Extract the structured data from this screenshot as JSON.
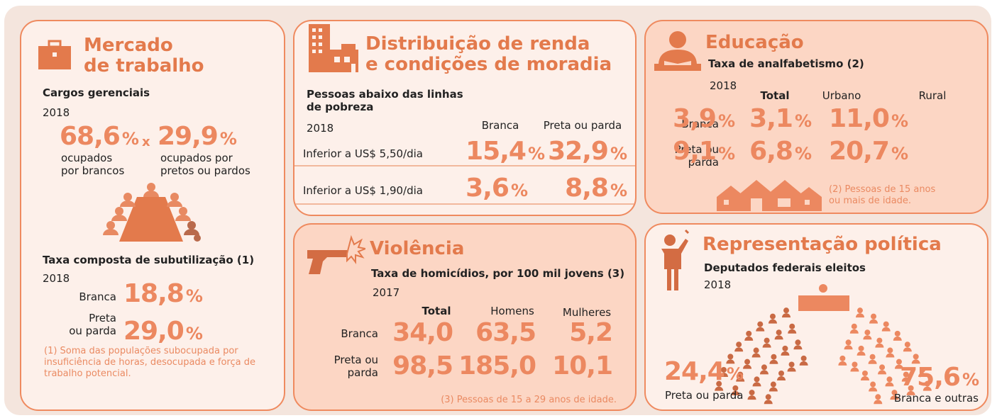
{
  "mercado": {
    "title": "Mercado\nde trabalho",
    "subtitle": "Cargos gerenciais",
    "year": "2018",
    "stats": [
      {
        "value": "68,6",
        "unit": "%",
        "label": "ocupados\npor brancos"
      },
      {
        "value": "29,9",
        "unit": "%",
        "label": "ocupados por\npretos ou pardos"
      }
    ],
    "sep": "x",
    "subtitle2": "Taxa composta de subutilização (1)",
    "year2": "2018",
    "rows": [
      {
        "label": "Branca",
        "value": "18,8",
        "unit": "%"
      },
      {
        "label": "Preta\nou parda",
        "value": "29,0",
        "unit": "%"
      }
    ],
    "note": "(1) Soma das populações subocupada por insuficiência de horas, desocupada e força de trabalho potencial."
  },
  "renda": {
    "title": "Distribuição de renda\ne condições de moradia",
    "subtitle": "Pessoas abaixo das linhas\nde pobreza",
    "year": "2018",
    "columns": [
      "Branca",
      "Preta ou parda"
    ],
    "rows": [
      {
        "label": "Inferior a US$ 5,50/dia",
        "values": [
          {
            "value": "15,4",
            "unit": "%"
          },
          {
            "value": "32,9",
            "unit": "%"
          }
        ]
      },
      {
        "label": "Inferior a US$ 1,90/dia",
        "values": [
          {
            "value": "3,6",
            "unit": "%"
          },
          {
            "value": "8,8",
            "unit": "%"
          }
        ]
      }
    ]
  },
  "educacao": {
    "title": "Educação",
    "subtitle": "Taxa de analfabetismo (2)",
    "year": "2018",
    "columns": [
      "Total",
      "Urbano",
      "Rural"
    ],
    "rows": [
      {
        "label": "Branca",
        "values": [
          {
            "value": "3,9",
            "unit": "%"
          },
          {
            "value": "3,1",
            "unit": "%"
          },
          {
            "value": "11,0",
            "unit": "%"
          }
        ]
      },
      {
        "label": "Preta ou\nparda",
        "values": [
          {
            "value": "9,1",
            "unit": "%"
          },
          {
            "value": "6,8",
            "unit": "%"
          },
          {
            "value": "20,7",
            "unit": "%"
          }
        ]
      }
    ],
    "note": "(2) Pessoas de 15 anos\nou mais de idade."
  },
  "violencia": {
    "title": "Violência",
    "subtitle": "Taxa de homicídios, por 100 mil jovens (3)",
    "year": "2017",
    "columns": [
      "Total",
      "Homens",
      "Mulheres"
    ],
    "rows": [
      {
        "label": "Branca",
        "values": [
          "34,0",
          "63,5",
          "5,2"
        ]
      },
      {
        "label": "Preta ou\nparda",
        "values": [
          "98,5",
          "185,0",
          "10,1"
        ]
      }
    ],
    "note": "(3) Pessoas de 15 a 29 anos de idade."
  },
  "politica": {
    "title": "Representação política",
    "subtitle": "Deputados federais eleitos",
    "year": "2018",
    "left": {
      "value": "24,4",
      "unit": "%",
      "label": "Preta ou parda"
    },
    "right": {
      "value": "75,6",
      "unit": "%",
      "label": "Branca e outras"
    }
  }
}
